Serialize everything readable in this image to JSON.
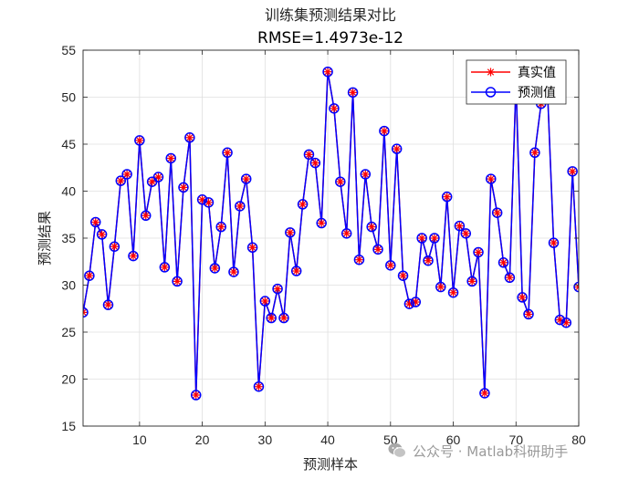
{
  "chart_data": {
    "type": "line",
    "title": "训练集预测结果对比",
    "subtitle": "RMSE=1.4973e-12",
    "xlabel": "预测样本",
    "ylabel": "预测结果",
    "xlim": [
      1,
      80
    ],
    "ylim": [
      15,
      55
    ],
    "xticks": [
      10,
      20,
      30,
      40,
      50,
      60,
      70,
      80
    ],
    "yticks": [
      15,
      20,
      25,
      30,
      35,
      40,
      45,
      50,
      55
    ],
    "grid": true,
    "legend_position": "top-right",
    "x": [
      1,
      2,
      3,
      4,
      5,
      6,
      7,
      8,
      9,
      10,
      11,
      12,
      13,
      14,
      15,
      16,
      17,
      18,
      19,
      20,
      21,
      22,
      23,
      24,
      25,
      26,
      27,
      28,
      29,
      30,
      31,
      32,
      33,
      34,
      35,
      36,
      37,
      38,
      39,
      40,
      41,
      42,
      43,
      44,
      45,
      46,
      47,
      48,
      49,
      50,
      51,
      52,
      53,
      54,
      55,
      56,
      57,
      58,
      59,
      60,
      61,
      62,
      63,
      64,
      65,
      66,
      67,
      68,
      69,
      70,
      71,
      72,
      73,
      74,
      75,
      76,
      77,
      78,
      79,
      80
    ],
    "series": [
      {
        "name": "真实值",
        "color": "#ff0000",
        "marker": "asterisk",
        "values": [
          27.1,
          31.0,
          36.7,
          35.4,
          27.9,
          34.1,
          41.1,
          41.8,
          33.1,
          45.4,
          37.4,
          41.0,
          41.5,
          31.9,
          43.5,
          30.4,
          40.4,
          45.7,
          18.3,
          39.1,
          38.8,
          31.8,
          36.2,
          44.1,
          31.4,
          38.4,
          41.3,
          34.0,
          19.2,
          28.3,
          26.5,
          29.6,
          26.5,
          35.6,
          31.5,
          38.6,
          43.9,
          43.0,
          36.6,
          52.7,
          48.8,
          41.0,
          35.5,
          50.5,
          32.7,
          41.8,
          36.2,
          33.8,
          46.4,
          32.1,
          44.5,
          31.0,
          28.0,
          28.2,
          35.0,
          32.6,
          35.0,
          29.8,
          39.4,
          29.2,
          36.3,
          35.5,
          30.4,
          33.5,
          18.5,
          41.3,
          37.7,
          32.4,
          30.8,
          51.6,
          28.7,
          26.9,
          44.1,
          49.3,
          51.0,
          34.5,
          26.3,
          26.0,
          42.1,
          29.8
        ]
      },
      {
        "name": "预测值",
        "color": "#0000ff",
        "marker": "circle",
        "values": [
          27.1,
          31.0,
          36.7,
          35.4,
          27.9,
          34.1,
          41.1,
          41.8,
          33.1,
          45.4,
          37.4,
          41.0,
          41.5,
          31.9,
          43.5,
          30.4,
          40.4,
          45.7,
          18.3,
          39.1,
          38.8,
          31.8,
          36.2,
          44.1,
          31.4,
          38.4,
          41.3,
          34.0,
          19.2,
          28.3,
          26.5,
          29.6,
          26.5,
          35.6,
          31.5,
          38.6,
          43.9,
          43.0,
          36.6,
          52.7,
          48.8,
          41.0,
          35.5,
          50.5,
          32.7,
          41.8,
          36.2,
          33.8,
          46.4,
          32.1,
          44.5,
          31.0,
          28.0,
          28.2,
          35.0,
          32.6,
          35.0,
          29.8,
          39.4,
          29.2,
          36.3,
          35.5,
          30.4,
          33.5,
          18.5,
          41.3,
          37.7,
          32.4,
          30.8,
          51.6,
          28.7,
          26.9,
          44.1,
          49.3,
          51.0,
          34.5,
          26.3,
          26.0,
          42.1,
          29.8
        ]
      }
    ]
  },
  "watermark": {
    "text": "公众号 · Matlab科研助手",
    "icon": "wechat-icon"
  }
}
